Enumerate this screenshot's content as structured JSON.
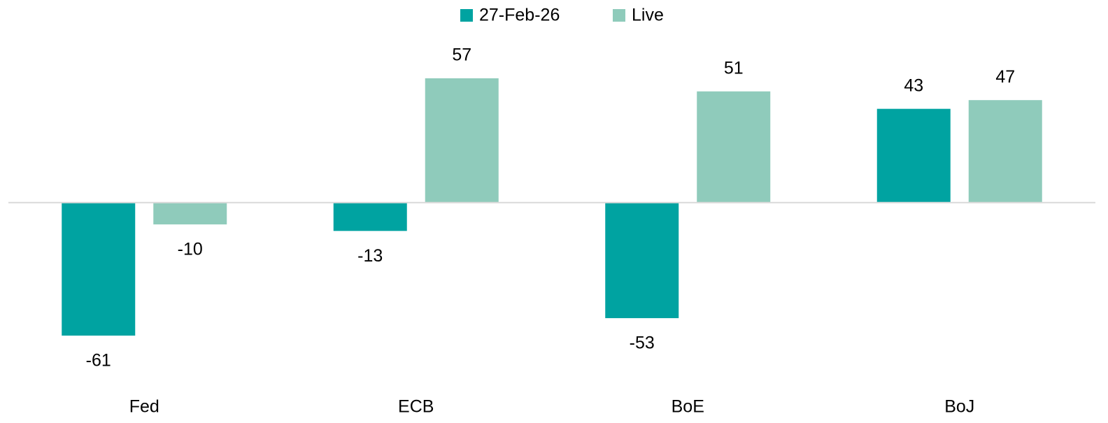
{
  "chart_data": {
    "type": "bar",
    "categories": [
      "Fed",
      "ECB",
      "BoE",
      "BoJ"
    ],
    "series": [
      {
        "name": "27-Feb-26",
        "color": "#00a3a1",
        "values": [
          -61,
          -13,
          -53,
          43
        ]
      },
      {
        "name": "Live",
        "color": "#8fcbbb",
        "values": [
          -10,
          57,
          51,
          47
        ]
      }
    ],
    "legend": "top"
  }
}
